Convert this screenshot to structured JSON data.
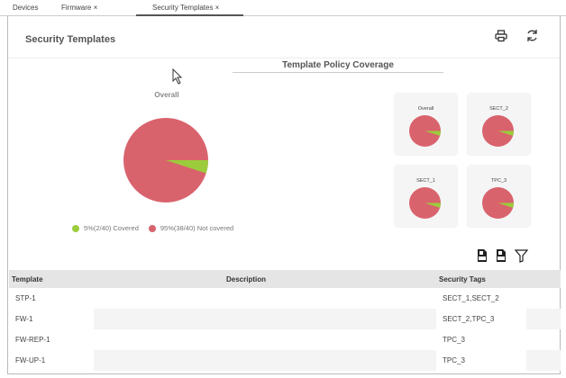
{
  "tabs": [
    {
      "label": "Devices"
    },
    {
      "label": "Firmware",
      "close": "×"
    },
    {
      "label": "Security Templates",
      "close": "×"
    }
  ],
  "header": {
    "title": "Security Templates",
    "print_icon": "printer-icon",
    "refresh_icon": "refresh-icon"
  },
  "coverage": {
    "title": "Template Policy Coverage",
    "overall_label": "Overall",
    "legend": [
      {
        "label": "5%(2/40) Covered",
        "color": "#9ccc3c"
      },
      {
        "label": "95%(38/40) Not covered",
        "color": "#d9636d"
      }
    ],
    "covered_percent": 5,
    "cards": [
      {
        "label": "Overall"
      },
      {
        "label": "SECT_2"
      },
      {
        "label": "SECT_1"
      },
      {
        "label": "TPC_3"
      }
    ]
  },
  "toolbar": {
    "icons": [
      "export-csv-icon",
      "export-csv-icon",
      "filter-icon"
    ]
  },
  "table": {
    "headers": [
      "Template",
      "Description",
      "Security Tags"
    ],
    "rows": [
      [
        "STP-1",
        "",
        "SECT_1,SECT_2"
      ],
      [
        "FW-1",
        "",
        "SECT_2,TPC_3"
      ],
      [
        "FW-REP-1",
        "",
        "TPC_3"
      ],
      [
        "FW-UP-1",
        "",
        "TPC_3"
      ]
    ]
  }
}
